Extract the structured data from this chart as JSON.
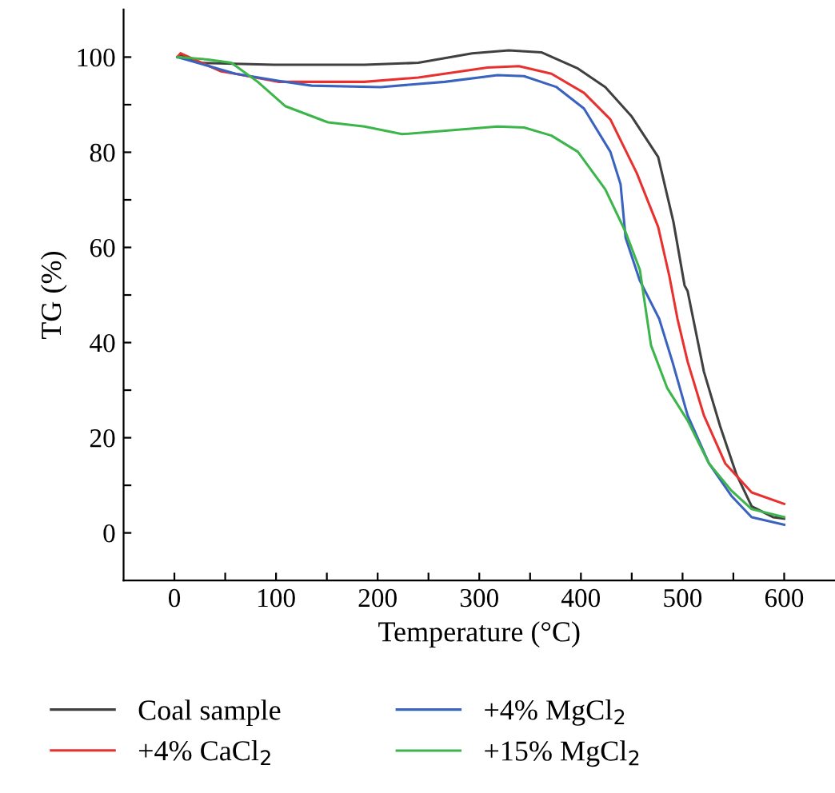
{
  "chart_data": {
    "type": "line",
    "xlabel": "Temperature (°C)",
    "ylabel": "TG (%)",
    "xlim": [
      -50,
      650
    ],
    "ylim": [
      -10,
      110
    ],
    "xticks": [
      0,
      {
        "value": 50,
        "label": null
      },
      100,
      {
        "value": 150,
        "label": null
      },
      200,
      {
        "value": 250,
        "label": null
      },
      300,
      {
        "value": 350,
        "label": null
      },
      400,
      {
        "value": 450,
        "label": null
      },
      500,
      {
        "value": 550,
        "label": null
      },
      600
    ],
    "yticks": [
      0,
      {
        "value": 10,
        "label": null
      },
      20,
      {
        "value": 30,
        "label": null
      },
      40,
      {
        "value": 50,
        "label": null
      },
      60,
      {
        "value": 70,
        "label": null
      },
      80,
      {
        "value": 90,
        "label": null
      },
      100
    ],
    "grid": false,
    "legend": "bottom",
    "marker": "none",
    "line_style": "solid",
    "series": [
      {
        "name": "Coal sample",
        "color": "#404040",
        "x": [
          3,
          6,
          25,
          98,
          187,
          240,
          293,
          329,
          361,
          397,
          424,
          450,
          476,
          491,
          502,
          505,
          521,
          537,
          553,
          568,
          589,
          600
        ],
        "values": [
          100,
          100.5,
          98.8,
          98.4,
          98.4,
          98.8,
          100.8,
          101.4,
          101,
          97.6,
          93.7,
          87.5,
          79,
          65.4,
          52,
          50.8,
          33.9,
          22.4,
          12.3,
          5.6,
          3.3,
          3
        ]
      },
      {
        "name": "+4% CaCl$_{2}$",
        "color": "#e8312f",
        "x": [
          3,
          6,
          46,
          60,
          103,
          187,
          240,
          308,
          339,
          371,
          403,
          429,
          455,
          476,
          487,
          495,
          505,
          521,
          542,
          568,
          600
        ],
        "values": [
          100,
          100.8,
          97,
          96.5,
          94.8,
          94.8,
          95.7,
          97.8,
          98.1,
          96.5,
          92.5,
          86.9,
          75.6,
          64.3,
          54,
          45,
          36,
          24.7,
          14.6,
          8.5,
          6.1
        ]
      },
      {
        "name": "+4% MgCl$_{2}$",
        "color": "#3a63c0",
        "x": [
          3,
          60,
          103,
          135,
          203,
          266,
          318,
          344,
          376,
          403,
          429,
          439,
          444,
          458,
          477,
          490,
          505,
          526,
          548,
          568,
          600
        ],
        "values": [
          100,
          96.5,
          95,
          94,
          93.7,
          94.8,
          96.2,
          96,
          93.7,
          89.2,
          80.1,
          73.3,
          62,
          53,
          45,
          36,
          24.7,
          14.6,
          7.8,
          3.3,
          1.7
        ]
      },
      {
        "name": "+15% MgCl$_{2}$",
        "color": "#3cb54a",
        "x": [
          3,
          33,
          56,
          82,
          109,
          151,
          187,
          224,
          318,
          344,
          371,
          397,
          424,
          444,
          458,
          469,
          485,
          505,
          526,
          548,
          568,
          600
        ],
        "values": [
          100,
          99.5,
          98.8,
          94.8,
          89.7,
          86.3,
          85.4,
          83.8,
          85.4,
          85.2,
          83.5,
          80.1,
          72.2,
          63.2,
          55.3,
          39.4,
          30.4,
          23.6,
          14.6,
          8.9,
          5,
          3.3
        ]
      }
    ]
  }
}
